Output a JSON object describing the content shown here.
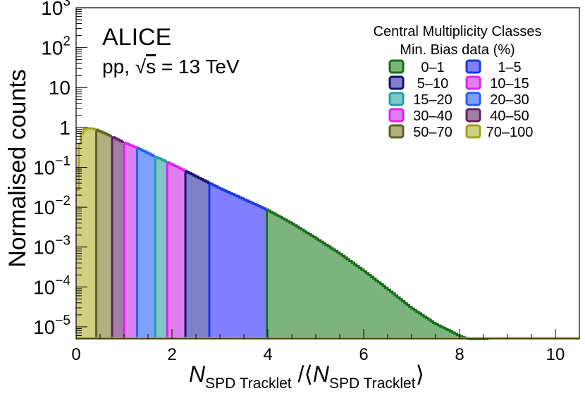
{
  "chart_data": {
    "type": "area",
    "title": "",
    "experiment_label": "ALICE",
    "system_label_prefix": "pp, ",
    "sqrt_symbol": "√",
    "system_label_s": "s",
    "system_label_suffix": " = 13 TeV",
    "ylabel": "Normalised counts",
    "xlabel": {
      "n1": "N",
      "sub1": "SPD Tracklet",
      "slash": " /",
      "open": "⟨",
      "n2": "N",
      "sub2": "SPD Tracklet",
      "close": "⟩"
    },
    "xlim": [
      0,
      10.5
    ],
    "ylim": [
      5e-06,
      1000
    ],
    "y_scale": "log",
    "x_ticks": [
      0,
      2,
      4,
      6,
      8,
      10
    ],
    "x_tick_labels": [
      "0",
      "2",
      "4",
      "6",
      "8",
      "10"
    ],
    "y_ticks": [
      {
        "base": "10",
        "exp": "−5",
        "value": 1e-05
      },
      {
        "base": "10",
        "exp": "−4",
        "value": 0.0001
      },
      {
        "base": "10",
        "exp": "−3",
        "value": 0.001
      },
      {
        "base": "10",
        "exp": "−2",
        "value": 0.01
      },
      {
        "base": "10",
        "exp": "−1",
        "value": 0.1
      },
      {
        "base": "1",
        "exp": "",
        "value": 1
      },
      {
        "base": "10",
        "exp": "",
        "value": 10
      },
      {
        "base": "10",
        "exp": "2",
        "value": 100
      },
      {
        "base": "10",
        "exp": "3",
        "value": 1000
      }
    ],
    "distribution": {
      "x": [
        0.0,
        0.05,
        0.1,
        0.15,
        0.2,
        0.3,
        0.4,
        0.6,
        0.8,
        1.0,
        1.3,
        1.6,
        2.0,
        2.5,
        3.0,
        3.5,
        4.0,
        4.5,
        5.0,
        5.5,
        6.0,
        6.5,
        7.0,
        7.5,
        7.8,
        8.0,
        8.2,
        8.4,
        8.6
      ],
      "y": [
        0.003,
        0.25,
        0.6,
        0.85,
        0.95,
        0.95,
        0.9,
        0.72,
        0.55,
        0.42,
        0.3,
        0.2,
        0.12,
        0.06,
        0.03,
        0.016,
        0.0085,
        0.004,
        0.0017,
        0.0007,
        0.00026,
        9e-05,
        3e-05,
        1.2e-05,
        8e-06,
        6e-06,
        5e-06,
        5e-06,
        5e-06
      ]
    },
    "legend": {
      "title_line1": "Central Multiplicity Classes",
      "title_line2": "Min. Bias data (%)",
      "placement": "top-right"
    },
    "classes": [
      {
        "label": "0–1",
        "x_min": 3.98,
        "x_max": 8.6,
        "fill": "#7db37d",
        "stroke": "#1a6e1a"
      },
      {
        "label": "1–5",
        "x_min": 2.78,
        "x_max": 3.98,
        "fill": "#8080ff",
        "stroke": "#1a37e0"
      },
      {
        "label": "5–10",
        "x_min": 2.28,
        "x_max": 2.78,
        "fill": "#8080c8",
        "stroke": "#101070"
      },
      {
        "label": "10–15",
        "x_min": 1.9,
        "x_max": 2.28,
        "fill": "#e080f0",
        "stroke": "#e020f0"
      },
      {
        "label": "15–20",
        "x_min": 1.65,
        "x_max": 1.9,
        "fill": "#80c8c8",
        "stroke": "#20a0a0"
      },
      {
        "label": "20–30",
        "x_min": 1.27,
        "x_max": 1.65,
        "fill": "#80a0ff",
        "stroke": "#2060f0"
      },
      {
        "label": "30–40",
        "x_min": 1.0,
        "x_max": 1.27,
        "fill": "#e080f0",
        "stroke": "#e020f0"
      },
      {
        "label": "40–50",
        "x_min": 0.75,
        "x_max": 1.0,
        "fill": "#a080a0",
        "stroke": "#602060"
      },
      {
        "label": "50–70",
        "x_min": 0.42,
        "x_max": 0.75,
        "fill": "#b0b080",
        "stroke": "#606020"
      },
      {
        "label": "70–100",
        "x_min": 0.0,
        "x_max": 0.42,
        "fill": "#d0d080",
        "stroke": "#a0a020"
      }
    ]
  }
}
